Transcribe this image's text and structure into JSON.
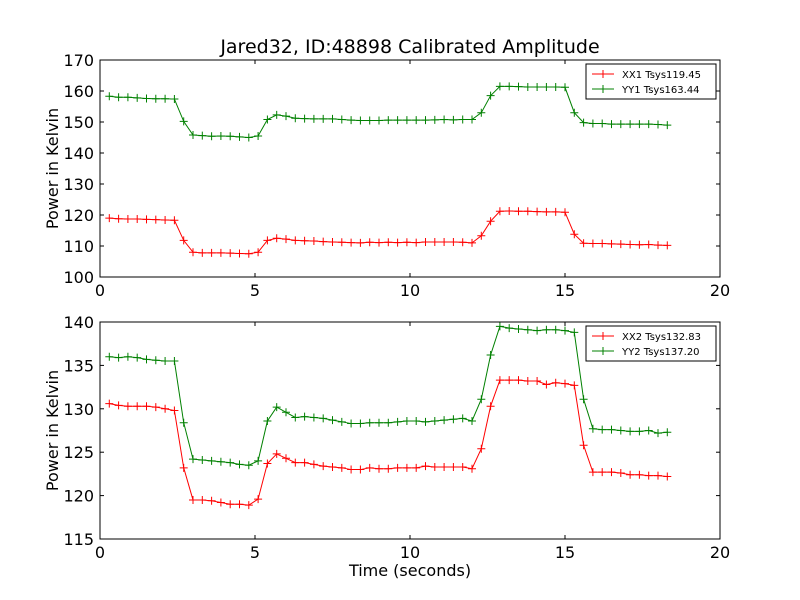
{
  "figure_title": "Jared32, ID:48898 Calibrated Amplitude",
  "chart_data": [
    {
      "type": "line",
      "title": "Jared32, ID:48898 Calibrated Amplitude",
      "xlabel": "",
      "ylabel": "Power in Kelvin",
      "xlim": [
        0,
        20
      ],
      "ylim": [
        100,
        170
      ],
      "xticks": [
        0,
        5,
        10,
        15,
        20
      ],
      "yticks": [
        100,
        110,
        120,
        130,
        140,
        150,
        160,
        170
      ],
      "grid": false,
      "legend_position": "upper-right",
      "x": [
        0.3,
        0.6,
        0.9,
        1.2,
        1.5,
        1.8,
        2.1,
        2.4,
        2.7,
        3.0,
        3.3,
        3.6,
        3.9,
        4.2,
        4.5,
        4.8,
        5.1,
        5.4,
        5.7,
        6.0,
        6.3,
        6.6,
        6.9,
        7.2,
        7.5,
        7.8,
        8.1,
        8.4,
        8.7,
        9.0,
        9.3,
        9.6,
        9.9,
        10.2,
        10.5,
        10.8,
        11.1,
        11.4,
        11.7,
        12.0,
        12.3,
        12.6,
        12.9,
        13.2,
        13.5,
        13.8,
        14.1,
        14.4,
        14.7,
        15.0,
        15.3,
        15.6,
        15.9,
        16.2,
        16.5,
        16.8,
        17.1,
        17.4,
        17.7,
        18.0,
        18.3
      ],
      "series": [
        {
          "name": "XX1 Tsys119.45",
          "color": "#ff0000",
          "values": [
            119.0,
            118.8,
            118.7,
            118.7,
            118.6,
            118.5,
            118.4,
            118.3,
            111.8,
            108.0,
            107.8,
            107.8,
            107.8,
            107.7,
            107.6,
            107.5,
            108.0,
            111.8,
            112.5,
            112.2,
            111.8,
            111.7,
            111.6,
            111.4,
            111.3,
            111.2,
            111.1,
            111.0,
            111.2,
            111.1,
            111.2,
            111.1,
            111.2,
            111.1,
            111.3,
            111.3,
            111.3,
            111.3,
            111.2,
            111.0,
            113.3,
            118.0,
            121.2,
            121.3,
            121.2,
            121.2,
            121.1,
            121.0,
            121.0,
            120.9,
            113.8,
            110.9,
            110.8,
            110.8,
            110.7,
            110.6,
            110.5,
            110.4,
            110.5,
            110.3,
            110.2
          ]
        },
        {
          "name": "YY1 Tsys163.44",
          "color": "#008000",
          "values": [
            158.3,
            158.0,
            158.0,
            157.8,
            157.6,
            157.5,
            157.5,
            157.4,
            150.2,
            145.8,
            145.6,
            145.4,
            145.5,
            145.4,
            145.2,
            145.0,
            145.5,
            150.8,
            152.3,
            151.9,
            151.2,
            151.1,
            151.0,
            151.0,
            151.0,
            150.8,
            150.6,
            150.5,
            150.5,
            150.5,
            150.6,
            150.6,
            150.6,
            150.6,
            150.6,
            150.7,
            150.8,
            150.7,
            150.8,
            150.8,
            153.0,
            158.5,
            161.5,
            161.5,
            161.4,
            161.3,
            161.3,
            161.3,
            161.3,
            161.2,
            153.0,
            149.8,
            149.5,
            149.5,
            149.3,
            149.3,
            149.3,
            149.3,
            149.3,
            149.2,
            149.0
          ]
        }
      ]
    },
    {
      "type": "line",
      "title": "",
      "xlabel": "Time (seconds)",
      "ylabel": "Power in Kelvin",
      "xlim": [
        0,
        20
      ],
      "ylim": [
        115,
        140
      ],
      "xticks": [
        0,
        5,
        10,
        15,
        20
      ],
      "yticks": [
        115,
        120,
        125,
        130,
        135,
        140
      ],
      "grid": false,
      "legend_position": "upper-right",
      "x": [
        0.3,
        0.6,
        0.9,
        1.2,
        1.5,
        1.8,
        2.1,
        2.4,
        2.7,
        3.0,
        3.3,
        3.6,
        3.9,
        4.2,
        4.5,
        4.8,
        5.1,
        5.4,
        5.7,
        6.0,
        6.3,
        6.6,
        6.9,
        7.2,
        7.5,
        7.8,
        8.1,
        8.4,
        8.7,
        9.0,
        9.3,
        9.6,
        9.9,
        10.2,
        10.5,
        10.8,
        11.1,
        11.4,
        11.7,
        12.0,
        12.3,
        12.6,
        12.9,
        13.2,
        13.5,
        13.8,
        14.1,
        14.4,
        14.7,
        15.0,
        15.3,
        15.6,
        15.9,
        16.2,
        16.5,
        16.8,
        17.1,
        17.4,
        17.7,
        18.0,
        18.3
      ],
      "series": [
        {
          "name": "XX2 Tsys132.83",
          "color": "#ff0000",
          "values": [
            130.6,
            130.4,
            130.3,
            130.3,
            130.3,
            130.2,
            130.0,
            129.8,
            123.2,
            119.5,
            119.5,
            119.4,
            119.2,
            119.0,
            119.0,
            118.9,
            119.6,
            123.7,
            124.8,
            124.3,
            123.8,
            123.8,
            123.6,
            123.4,
            123.3,
            123.2,
            123.0,
            123.0,
            123.2,
            123.1,
            123.1,
            123.2,
            123.2,
            123.2,
            123.4,
            123.3,
            123.3,
            123.3,
            123.3,
            123.1,
            125.4,
            130.3,
            133.3,
            133.3,
            133.3,
            133.2,
            133.2,
            132.8,
            133.0,
            132.9,
            132.7,
            125.8,
            122.7,
            122.7,
            122.7,
            122.6,
            122.4,
            122.4,
            122.3,
            122.3,
            122.2
          ]
        },
        {
          "name": "YY2 Tsys137.20",
          "color": "#008000",
          "values": [
            136.0,
            135.9,
            136.0,
            135.9,
            135.7,
            135.6,
            135.5,
            135.5,
            128.4,
            124.2,
            124.1,
            124.0,
            123.9,
            123.8,
            123.6,
            123.5,
            124.0,
            128.6,
            130.2,
            129.6,
            129.0,
            129.1,
            129.0,
            128.9,
            128.7,
            128.5,
            128.3,
            128.3,
            128.4,
            128.4,
            128.4,
            128.5,
            128.6,
            128.6,
            128.5,
            128.6,
            128.7,
            128.8,
            128.9,
            128.6,
            131.1,
            136.2,
            139.5,
            139.3,
            139.2,
            139.1,
            139.0,
            139.1,
            139.1,
            139.0,
            138.8,
            131.1,
            127.7,
            127.6,
            127.6,
            127.5,
            127.4,
            127.4,
            127.5,
            127.2,
            127.3
          ]
        }
      ]
    }
  ]
}
